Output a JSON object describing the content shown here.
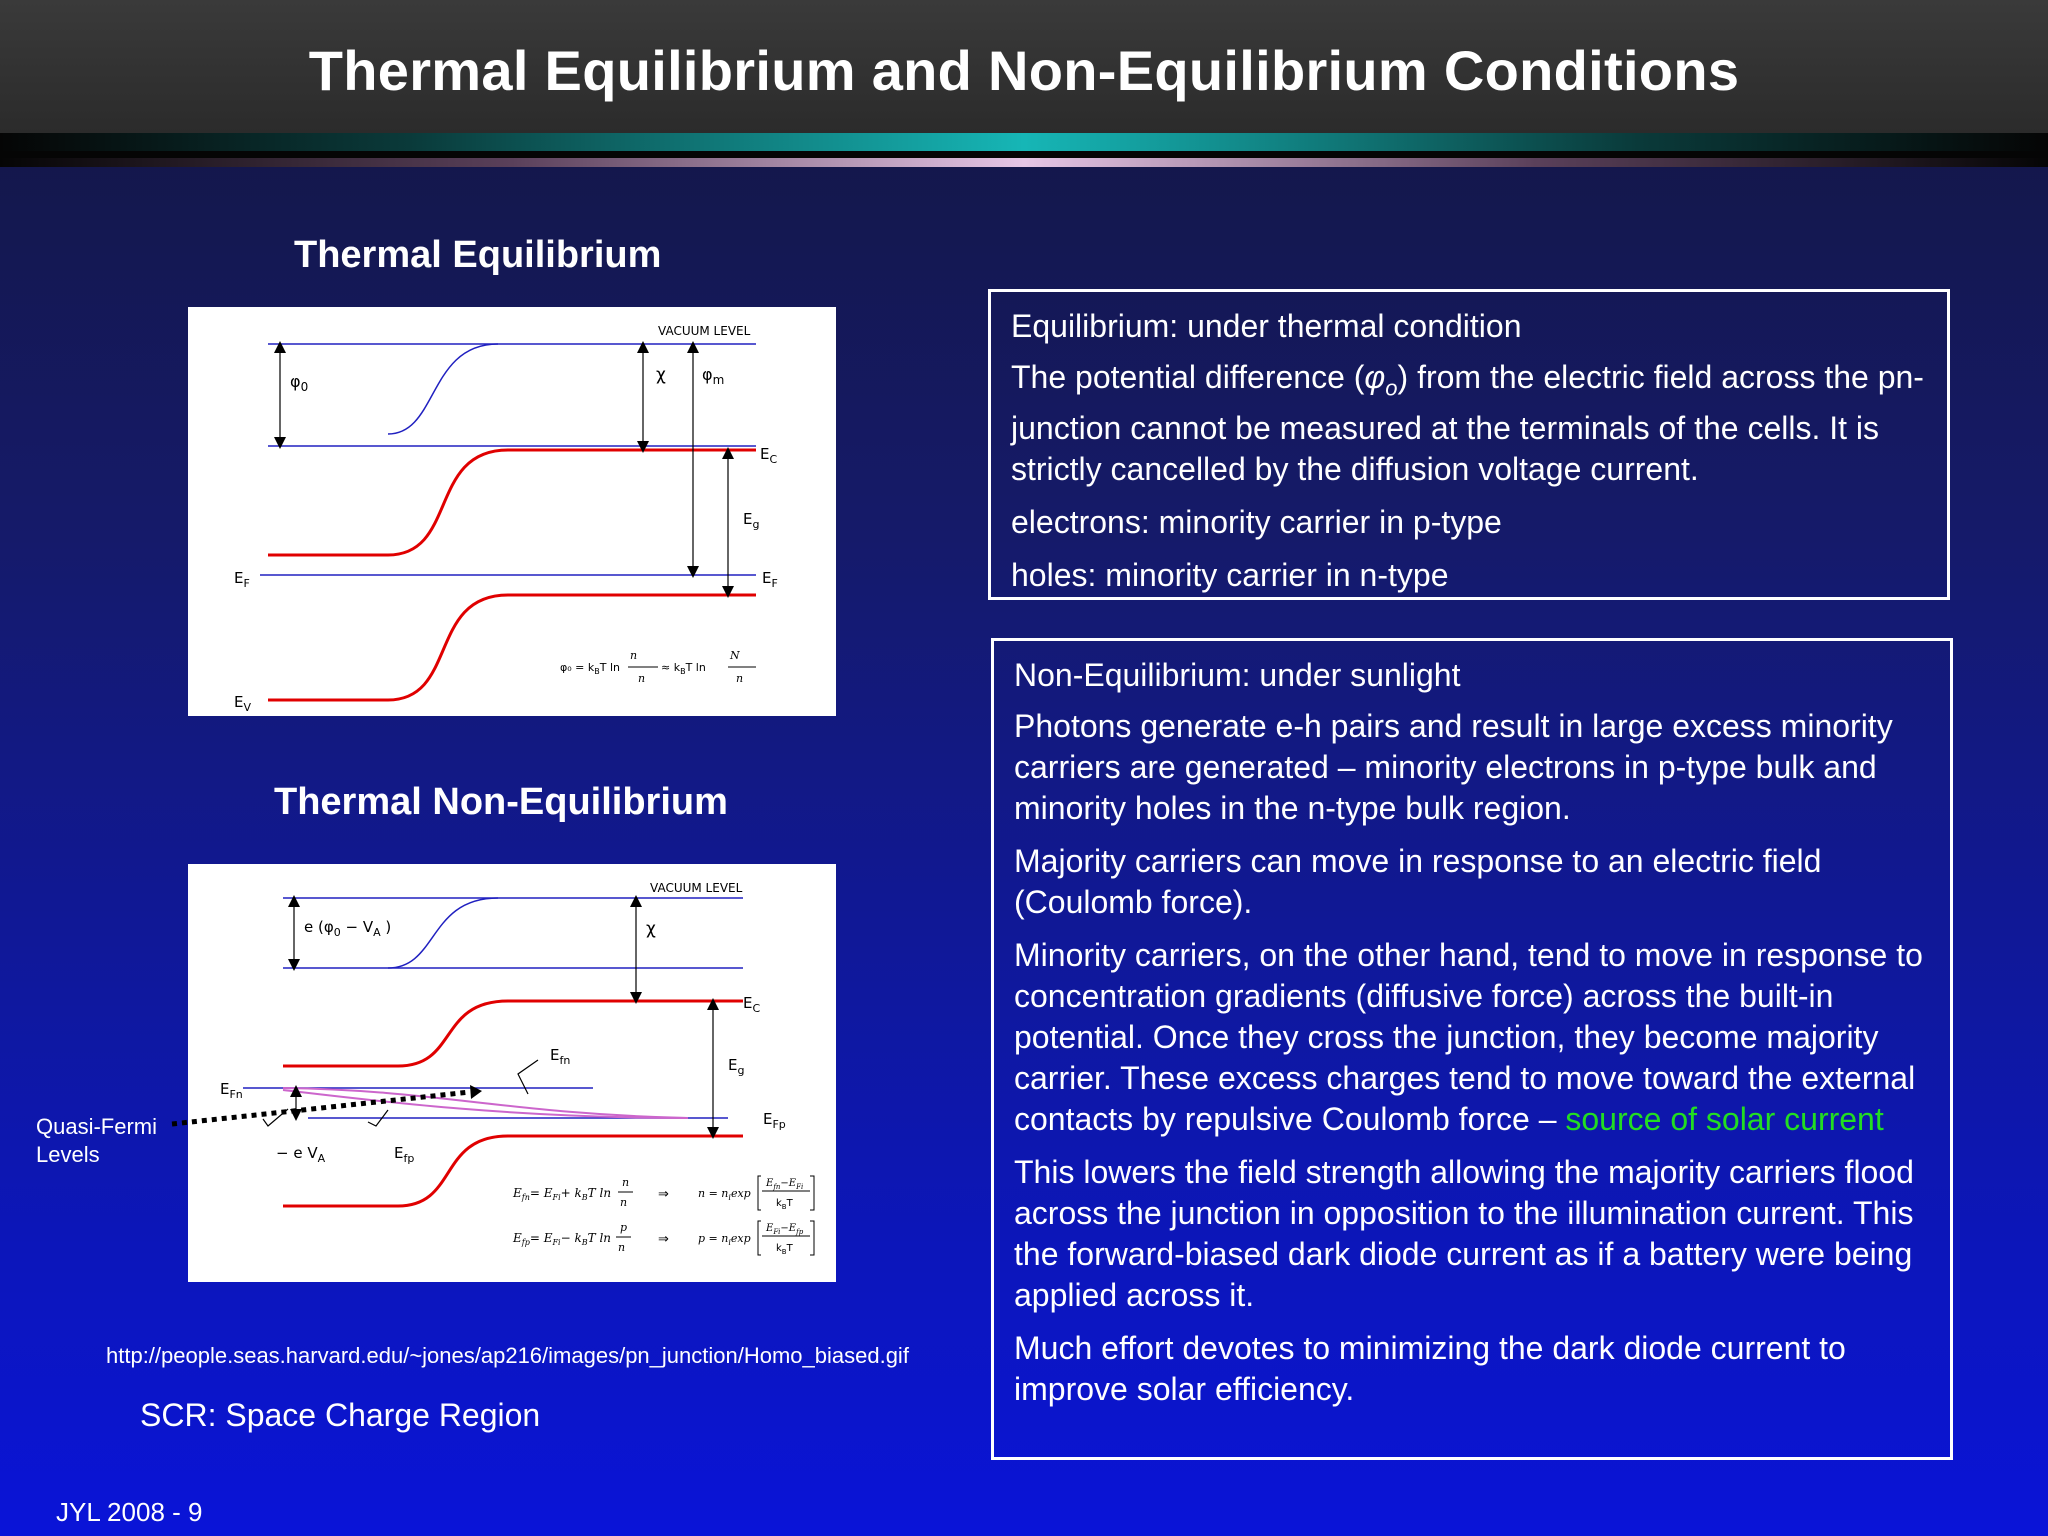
{
  "title": "Thermal Equilibrium and Non-Equilibrium Conditions",
  "left": {
    "eq_title": "Thermal Equilibrium",
    "neq_title": "Thermal Non-Equilibrium",
    "fig1": {
      "vacuum": "VACUUM LEVEL",
      "phi0": "φ",
      "phi0_sub": "0",
      "chi": "χ",
      "phim": "φ",
      "phim_sub": "m",
      "ec": "E",
      "ec_sub": "C",
      "eg": "E",
      "eg_sub": "g",
      "ef_left": "E",
      "ef_left_sub": "F",
      "ef_right": "E",
      "ef_right_sub": "F",
      "ev": "E",
      "ev_sub": "V",
      "formula_lhs": "φ₀ = k",
      "formula_mid": "T ln",
      "formula_num": "n",
      "formula_den": "n",
      "formula_approx": "≈ k",
      "formula_mid2": "T ln",
      "formula_num2": "N",
      "formula_den2": "n"
    },
    "fig2": {
      "vacuum": "VACUUM LEVEL",
      "ephi": "e (φ",
      "ephi_sub0": "0",
      "ephi_mid": " − V",
      "ephi_subA": "A",
      "ephi_end": " )",
      "chi": "χ",
      "ec": "E",
      "ec_sub": "C",
      "eg": "E",
      "eg_sub": "g",
      "efn_top": "E",
      "efn_top_sub": "fn",
      "efn_left": "E",
      "efn_left_sub": "Fn",
      "efp_right": "E",
      "efp_right_sub": "Fp",
      "eva": "− e V",
      "eva_sub": "A",
      "efp": "E",
      "efp_sub": "fp",
      "eq1_lhs": "E",
      "eq1_mid": "= E",
      "eq1_tail": "+ k",
      "eq1_ln": "T ln",
      "eq1_res": "n = n",
      "eq1_exp": "exp",
      "eq2_lhs": "E",
      "eq2_mid": "= E",
      "eq2_tail": "− k",
      "eq2_ln": "T ln",
      "eq2_res": "p = n",
      "eq2_exp": "exp",
      "arrow": "⇒",
      "kbt": "k",
      "kbt_T": "T"
    },
    "callout": [
      "Quasi-Fermi",
      "Levels"
    ],
    "url": "http://people.seas.harvard.edu/~jones/ap216/images/pn_junction/Homo_biased.gif",
    "scr": "SCR: Space Charge Region",
    "footer": "JYL 2008 - 9"
  },
  "box1": {
    "heading": "Equilibrium: under thermal condition",
    "p1_a": "The potential difference (",
    "p1_phi": "φ",
    "p1_sub": "o",
    "p1_b": ") from the electric field across the pn-junction cannot be measured at the terminals of the cells. It is strictly cancelled by the diffusion voltage current.",
    "p2": "electrons: minority carrier in p-type",
    "p3": "holes: minority carrier in n-type"
  },
  "box2": {
    "heading": "Non-Equilibrium: under sunlight",
    "p1": "Photons generate e-h pairs and result in large excess minority carriers are generated – minority electrons in p-type bulk and minority holes in the n-type bulk region.",
    "p2": "Majority carriers can move in response to an electric field (Coulomb force).",
    "p3": "Minority carriers, on the other hand, tend to move in response to concentration gradients (diffusive force) across the built-in potential. Once they cross the junction, they become majority carrier. These excess charges tend to move toward the external contacts by repulsive Coulomb force  – ",
    "p3_highlight": "source of solar current",
    "p4": "This lowers the field strength allowing the majority carriers flood across the junction in opposition to the illumination current.  This the forward-biased dark diode current as if a battery were being applied across it.",
    "p5": "Much effort devotes to minimizing the dark diode current to improve solar efficiency."
  },
  "colors": {
    "band_edge": "#e00000",
    "level_line": "#2020c0",
    "quasi_fermi": "#cc66cc",
    "highlight": "#22dd22"
  }
}
